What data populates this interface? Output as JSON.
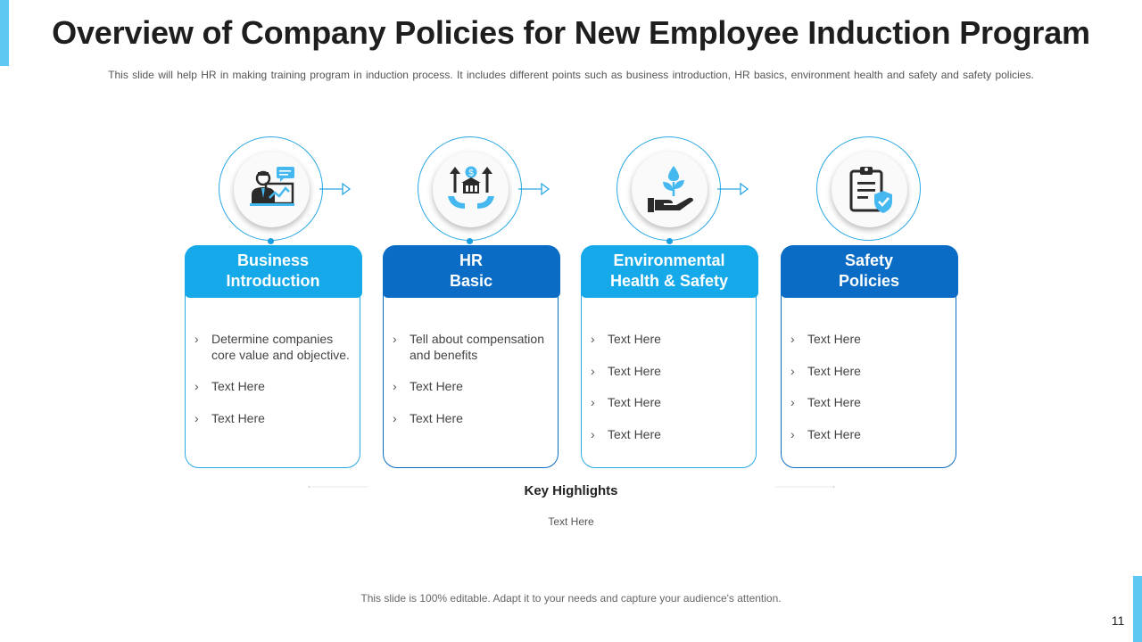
{
  "title": "Overview of Company Policies for New Employee Induction Program",
  "subtitle": "This slide will help HR in making training program  in induction process. It includes different  points such as business introduction, HR basics, environment  health and safety and safety policies.",
  "colors": {
    "light_blue": "#15a9e9",
    "dark_blue": "#0a6cc4",
    "accent": "#5fc8f2"
  },
  "steps": [
    {
      "heading": "Business\nIntroduction",
      "icon": "presenter-icon",
      "items": [
        "Determine companies core value  and objective.",
        "Text Here",
        "Text Here"
      ]
    },
    {
      "heading": "HR\nBasic",
      "icon": "compensation-hands-icon",
      "items": [
        "Tell about compensation and benefits",
        "Text Here",
        "Text Here"
      ]
    },
    {
      "heading": "Environmental\nHealth & Safety",
      "icon": "hand-plant-icon",
      "items": [
        "Text Here",
        "Text Here",
        "Text Here",
        "Text Here"
      ]
    },
    {
      "heading": "Safety\nPolicies",
      "icon": "clipboard-shield-icon",
      "items": [
        "Text Here",
        "Text Here",
        "Text Here",
        "Text Here"
      ]
    }
  ],
  "key_highlights": {
    "title": "Key Highlights",
    "text": "Text Here"
  },
  "footer": "This slide is 100% editable. Adapt it to your needs and capture your audience's attention.",
  "page_number": "11"
}
